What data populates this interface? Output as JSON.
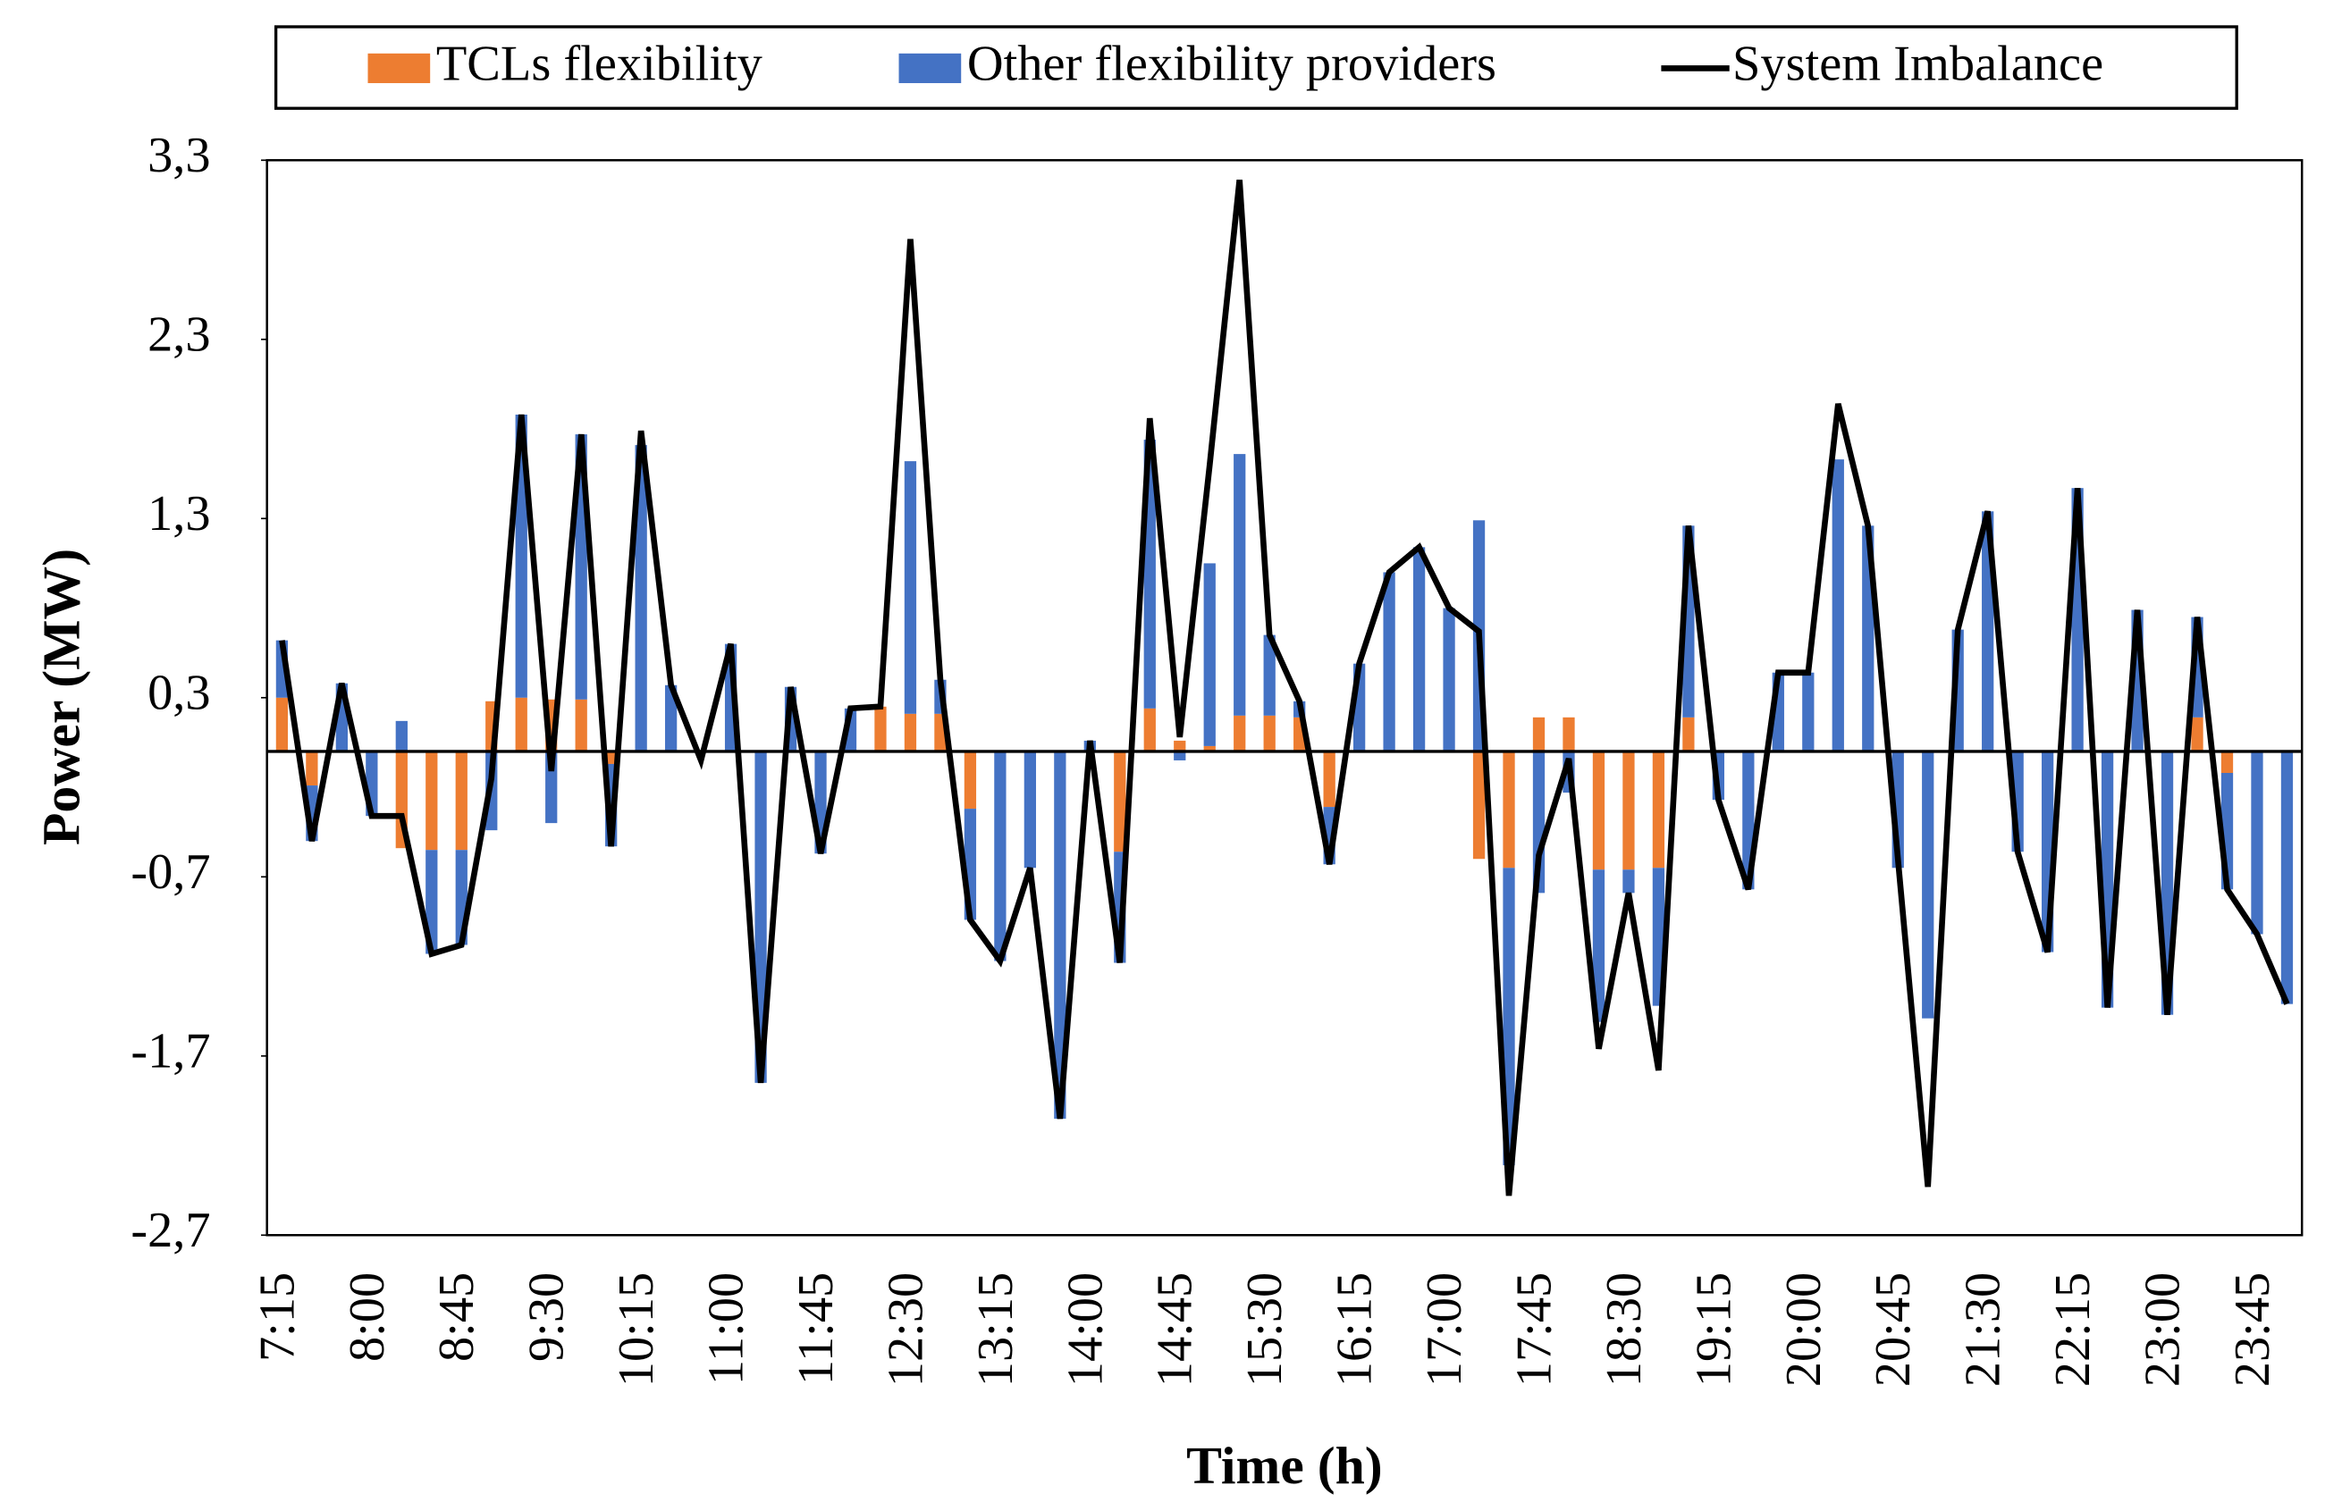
{
  "chart_data": {
    "type": "bar",
    "stacked": true,
    "ylabel": "Power (MW)",
    "xlabel": "Time (h)",
    "categories": [
      "7:15",
      null,
      null,
      "8:00",
      null,
      null,
      "8:45",
      null,
      null,
      "9:30",
      null,
      null,
      "10:15",
      null,
      null,
      "11:00",
      null,
      null,
      "11:45",
      null,
      null,
      "12:30",
      null,
      null,
      "13:15",
      null,
      null,
      "14:00",
      null,
      null,
      "14:45",
      null,
      null,
      "15:30",
      null,
      null,
      "16:15",
      null,
      null,
      "17:00",
      null,
      null,
      "17:45",
      null,
      null,
      "18:30",
      null,
      null,
      "19:15",
      null,
      null,
      "20:00",
      null,
      null,
      "20:45",
      null,
      null,
      "21:30",
      null,
      null,
      "22:15",
      null,
      null,
      "23:00",
      null,
      null,
      "23:45",
      null
    ],
    "series": [
      {
        "name": "TCLs flexibility",
        "type": "bar",
        "color": "#ed7d31",
        "values": [
          0.3,
          -0.19,
          0,
          0,
          -0.54,
          -0.55,
          -0.55,
          0.28,
          0.3,
          0.29,
          0.29,
          -0.07,
          0,
          0,
          0,
          0,
          0,
          0,
          0,
          0,
          0.25,
          0.21,
          0.21,
          -0.32,
          0,
          0,
          0,
          0,
          -0.56,
          0.24,
          0.06,
          0.03,
          0.2,
          0.2,
          0.19,
          -0.31,
          0,
          0,
          0,
          0,
          -0.6,
          -0.65,
          0.19,
          0.19,
          -0.66,
          -0.66,
          -0.65,
          0.19,
          0,
          0,
          0,
          0,
          0,
          0,
          0,
          0,
          0,
          0,
          0,
          0,
          0,
          0,
          0,
          0,
          0.19,
          -0.12,
          0,
          0
        ]
      },
      {
        "name": "Other flexibility providers",
        "type": "bar",
        "color": "#4472c4",
        "values": [
          0.32,
          -0.31,
          0.38,
          -0.36,
          0.17,
          -0.58,
          -0.53,
          -0.44,
          1.58,
          -0.4,
          1.48,
          -0.46,
          1.71,
          0.37,
          0,
          0.6,
          -1.85,
          0.36,
          -0.57,
          0.24,
          0,
          1.41,
          0.19,
          -0.62,
          -1.17,
          -0.65,
          -2.05,
          0.06,
          -0.62,
          1.5,
          -0.05,
          1.02,
          1.46,
          0.45,
          0.09,
          -0.32,
          0.49,
          1.0,
          1.14,
          0.8,
          1.29,
          -1.66,
          -0.79,
          -0.23,
          -0.85,
          -0.13,
          -0.77,
          1.07,
          -0.27,
          -0.77,
          0.44,
          0.44,
          1.63,
          1.26,
          -0.65,
          -1.49,
          0.68,
          1.34,
          -0.56,
          -1.12,
          1.47,
          -1.43,
          0.79,
          -1.47,
          0.56,
          -0.65,
          -1.02,
          -1.41
        ]
      },
      {
        "name": "System Imbalance",
        "type": "line",
        "color": "#000000",
        "values": [
          0.62,
          -0.5,
          0.38,
          -0.36,
          -0.36,
          -1.13,
          -1.08,
          -0.15,
          1.88,
          -0.11,
          1.77,
          -0.53,
          1.79,
          0.37,
          -0.05,
          0.6,
          -1.85,
          0.36,
          -0.57,
          0.24,
          0.25,
          2.86,
          0.4,
          -0.94,
          -1.17,
          -0.65,
          -2.05,
          0.06,
          -1.18,
          1.86,
          0.08,
          1.6,
          3.19,
          0.65,
          0.28,
          -0.63,
          0.49,
          1.0,
          1.14,
          0.8,
          0.67,
          -2.48,
          -0.58,
          -0.04,
          -1.66,
          -0.79,
          -1.78,
          1.26,
          -0.27,
          -0.77,
          0.44,
          0.44,
          1.94,
          1.26,
          -0.6,
          -2.43,
          0.68,
          1.34,
          -0.56,
          -1.12,
          1.47,
          -1.43,
          0.79,
          -1.47,
          0.75,
          -0.77,
          -1.02,
          -1.41
        ]
      }
    ],
    "ylim": [
      -2.7,
      3.3
    ],
    "yticks": [
      {
        "value": -2.7,
        "label": "-2,7"
      },
      {
        "value": -1.7,
        "label": "-1,7"
      },
      {
        "value": -0.7,
        "label": "-0,7"
      },
      {
        "value": 0.3,
        "label": "0,3"
      },
      {
        "value": 1.3,
        "label": "1,3"
      },
      {
        "value": 2.3,
        "label": "2,3"
      },
      {
        "value": 3.3,
        "label": "3,3"
      }
    ],
    "grid": false,
    "legend": "top"
  }
}
